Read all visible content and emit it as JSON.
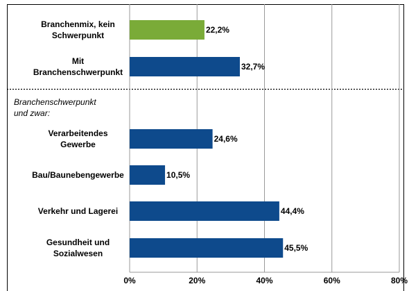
{
  "chart_data": {
    "type": "barh",
    "categories": [
      "Branchenmix, kein Schwerpunkt",
      "Mit Branchenschwerpunkt",
      "Verarbeitendes Gewerbe",
      "Bau/Baunebengewerbe",
      "Verkehr und Lagerei",
      "Gesundheit und Sozialwesen"
    ],
    "values": [
      22.2,
      32.7,
      24.6,
      10.5,
      44.4,
      45.5
    ],
    "value_labels": [
      "22,2%",
      "32,7%",
      "24,6%",
      "10,5%",
      "44,4%",
      "45,5%"
    ],
    "colors": [
      "#7aab38",
      "#0e4a8c",
      "#0e4a8c",
      "#0e4a8c",
      "#0e4a8c",
      "#0e4a8c"
    ],
    "annotations": [
      "Branchenschwerpunkt und zwar:"
    ],
    "xlim": [
      0,
      80
    ],
    "xticks": [
      {
        "value": 0,
        "label": "0%"
      },
      {
        "value": 20,
        "label": "20%"
      },
      {
        "value": 40,
        "label": "40%"
      },
      {
        "value": 60,
        "label": "60%"
      },
      {
        "value": 80,
        "label": "80%"
      }
    ],
    "grid": true
  }
}
